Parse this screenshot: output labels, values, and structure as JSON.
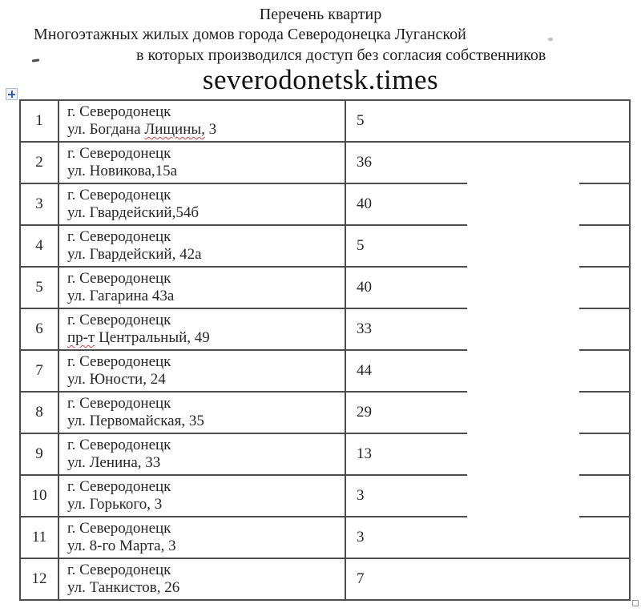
{
  "header": {
    "title": "Перечень квартир",
    "subtitle_line1": "Многоэтажных жилых домов города Северодонецка Луганской",
    "subtitle_line2": "в которых производился доступ без согласия собственников",
    "brand": "severodonetsk.times"
  },
  "table": {
    "rows": [
      {
        "n": "1",
        "city": "г. Северодонецк",
        "street_pre": "ул. Богдана ",
        "street_mark": "Лищины,",
        "street_post": " 3",
        "count": "5"
      },
      {
        "n": "2",
        "city": "г. Северодонецк",
        "street_pre": "ул. Новикова,15а",
        "street_mark": "",
        "street_post": "",
        "count": "36"
      },
      {
        "n": "3",
        "city": "г. Северодонецк",
        "street_pre": "ул. Гвардейский,54б",
        "street_mark": "",
        "street_post": "",
        "count": "40"
      },
      {
        "n": "4",
        "city": "г. Северодонецк",
        "street_pre": "ул. Гвардейский, 42а",
        "street_mark": "",
        "street_post": "",
        "count": "5"
      },
      {
        "n": "5",
        "city": "г. Северодонецк",
        "street_pre": "ул. Гагарина 43а",
        "street_mark": "",
        "street_post": "",
        "count": "40"
      },
      {
        "n": "6",
        "city": "г. Северодонецк",
        "street_pre": "",
        "street_mark": "пр-т",
        "street_post": " Центральный, 49",
        "count": "33"
      },
      {
        "n": "7",
        "city": "г. Северодонецк",
        "street_pre": "ул. Юности, 24",
        "street_mark": "",
        "street_post": "",
        "count": "44"
      },
      {
        "n": "8",
        "city": "г. Северодонецк",
        "street_pre": "ул. Первомайская, 35",
        "street_mark": "",
        "street_post": "",
        "count": "29"
      },
      {
        "n": "9",
        "city": "г. Северодонецк",
        "street_pre": "ул. Ленина, 33",
        "street_mark": "",
        "street_post": "",
        "count": "13"
      },
      {
        "n": "10",
        "city": "г. Северодонецк",
        "street_pre": "ул. Горького, 3",
        "street_mark": "",
        "street_post": "",
        "count": "3"
      },
      {
        "n": "11",
        "city": "г. Северодонецк",
        "street_pre": "ул. 8-го Марта, 3",
        "street_mark": "",
        "street_post": "",
        "count": "3"
      },
      {
        "n": "12",
        "city": "г. Северодонецк",
        "street_pre": "ул. Танкистов, 26",
        "street_mark": "",
        "street_post": "",
        "count": "7"
      }
    ],
    "erased_boundaries_after_rows": [
      2,
      3,
      4,
      5,
      6,
      7,
      8,
      9,
      10
    ]
  },
  "icons": {
    "move_handle": "table-move-cross",
    "resize_handle": "table-resize-square"
  },
  "colors": {
    "border": "#4c4c4c",
    "text": "#262626",
    "squiggle": "#d23f3f",
    "handle_blue": "#3a5fa8"
  }
}
